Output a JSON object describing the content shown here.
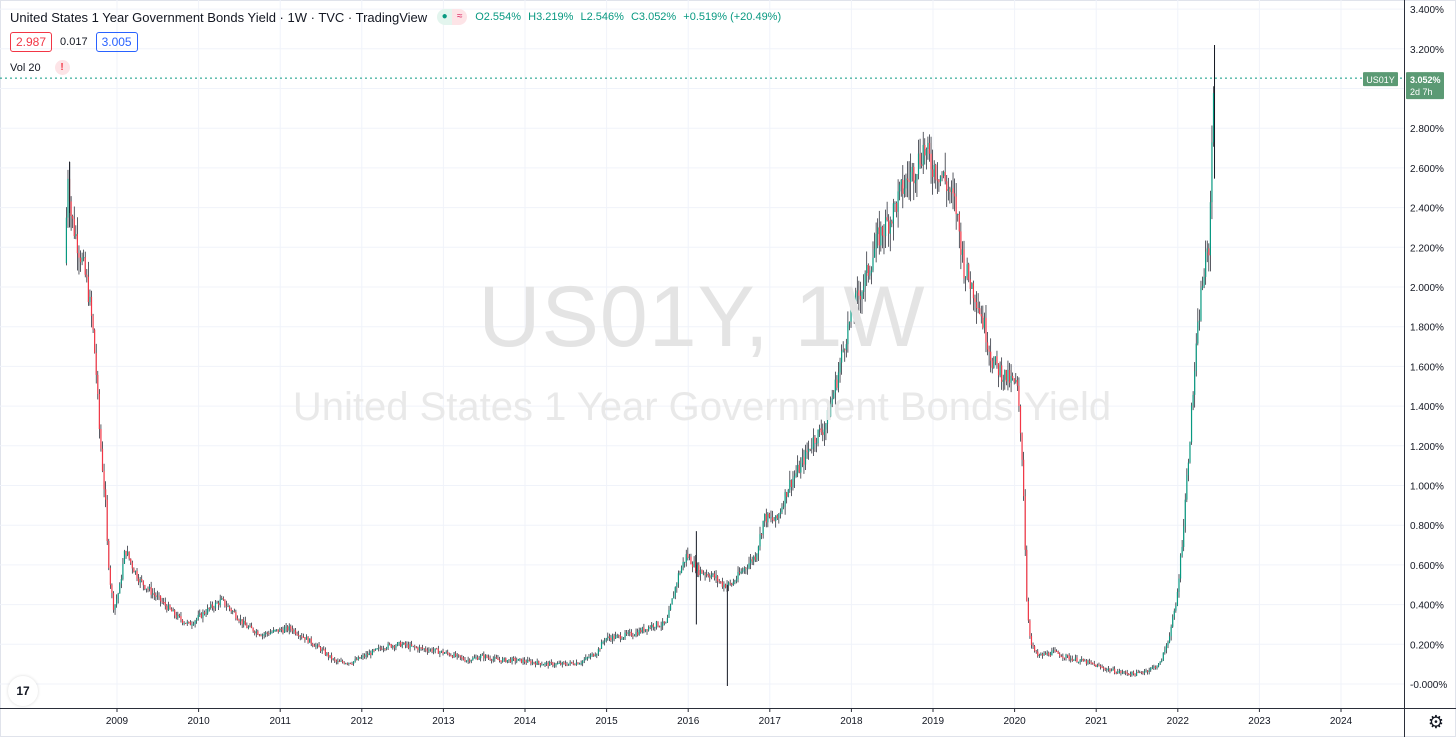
{
  "legend": {
    "title": "United States 1 Year Government Bonds Yield · 1W · TVC · TradingView",
    "open": "O2.554%",
    "high": "H3.219%",
    "low": "L2.546%",
    "close": "C3.052%",
    "change": "+0.519% (+20.49%)",
    "pill_left": "●",
    "pill_right": "≈"
  },
  "prices": {
    "bid": "2.987",
    "spread": "0.017",
    "ask": "3.005"
  },
  "volume": {
    "label": "Vol 20",
    "warn": "!"
  },
  "watermark": {
    "ticker": "US01Y, 1W",
    "description": "United States 1 Year Government Bonds Yield"
  },
  "last_price": {
    "symbol": "US01Y",
    "value": "3.052%",
    "countdown": "2d 7h",
    "value_num": 3.052
  },
  "colors": {
    "up": "#089981",
    "down": "#f23645",
    "grid": "#f0f3fa",
    "axis_text": "#131722",
    "label_bg": "#5b9a74"
  },
  "icons": {
    "logo": "tradingview-logo-icon",
    "settings": "gear-icon"
  },
  "logo_text": "17",
  "gear_text": "⚙",
  "chart_data": {
    "type": "candlestick",
    "interval": "1W",
    "y_unit": "%",
    "ylim": [
      -0.06,
      3.42
    ],
    "y_ticks": [
      "3.400%",
      "3.200%",
      "3.000%",
      "2.800%",
      "2.600%",
      "2.400%",
      "2.200%",
      "2.000%",
      "1.800%",
      "1.600%",
      "1.400%",
      "1.200%",
      "1.000%",
      "0.800%",
      "0.600%",
      "0.400%",
      "0.200%",
      "-0.000%"
    ],
    "y_tick_values": [
      3.4,
      3.2,
      3.0,
      2.8,
      2.6,
      2.4,
      2.2,
      2.0,
      1.8,
      1.6,
      1.4,
      1.2,
      1.0,
      0.8,
      0.6,
      0.4,
      0.2,
      0.0
    ],
    "xlim": [
      2008.3,
      2025.0
    ],
    "x_ticks": [
      "2009",
      "2010",
      "2011",
      "2012",
      "2013",
      "2014",
      "2015",
      "2016",
      "2017",
      "2018",
      "2019",
      "2020",
      "2021",
      "2022",
      "2023",
      "2024"
    ],
    "x_tick_values": [
      2009,
      2010,
      2011,
      2012,
      2013,
      2014,
      2015,
      2016,
      2017,
      2018,
      2019,
      2020,
      2021,
      2022,
      2023,
      2024
    ],
    "grid": true,
    "price_path": [
      [
        2008.38,
        2.12
      ],
      [
        2008.42,
        2.6
      ],
      [
        2008.46,
        2.35
      ],
      [
        2008.52,
        2.25
      ],
      [
        2008.58,
        2.15
      ],
      [
        2008.66,
        2.0
      ],
      [
        2008.72,
        1.8
      ],
      [
        2008.76,
        1.6
      ],
      [
        2008.8,
        1.3
      ],
      [
        2008.84,
        1.1
      ],
      [
        2008.88,
        0.9
      ],
      [
        2008.9,
        0.7
      ],
      [
        2008.94,
        0.5
      ],
      [
        2008.98,
        0.38
      ],
      [
        2009.05,
        0.48
      ],
      [
        2009.12,
        0.68
      ],
      [
        2009.2,
        0.6
      ],
      [
        2009.3,
        0.52
      ],
      [
        2009.45,
        0.46
      ],
      [
        2009.6,
        0.4
      ],
      [
        2009.75,
        0.34
      ],
      [
        2009.9,
        0.3
      ],
      [
        2010.0,
        0.33
      ],
      [
        2010.15,
        0.38
      ],
      [
        2010.3,
        0.42
      ],
      [
        2010.45,
        0.36
      ],
      [
        2010.6,
        0.29
      ],
      [
        2010.8,
        0.25
      ],
      [
        2011.0,
        0.27
      ],
      [
        2011.15,
        0.28
      ],
      [
        2011.3,
        0.24
      ],
      [
        2011.5,
        0.18
      ],
      [
        2011.7,
        0.11
      ],
      [
        2011.9,
        0.11
      ],
      [
        2012.1,
        0.15
      ],
      [
        2012.3,
        0.19
      ],
      [
        2012.5,
        0.2
      ],
      [
        2012.7,
        0.18
      ],
      [
        2012.9,
        0.17
      ],
      [
        2013.1,
        0.15
      ],
      [
        2013.3,
        0.12
      ],
      [
        2013.5,
        0.14
      ],
      [
        2013.7,
        0.12
      ],
      [
        2013.9,
        0.12
      ],
      [
        2014.1,
        0.11
      ],
      [
        2014.3,
        0.1
      ],
      [
        2014.5,
        0.1
      ],
      [
        2014.7,
        0.11
      ],
      [
        2014.9,
        0.16
      ],
      [
        2015.0,
        0.23
      ],
      [
        2015.2,
        0.24
      ],
      [
        2015.4,
        0.26
      ],
      [
        2015.6,
        0.3
      ],
      [
        2015.75,
        0.3
      ],
      [
        2015.9,
        0.55
      ],
      [
        2016.0,
        0.65
      ],
      [
        2016.15,
        0.57
      ],
      [
        2016.3,
        0.55
      ],
      [
        2016.45,
        0.5
      ],
      [
        2016.55,
        0.5
      ],
      [
        2016.7,
        0.58
      ],
      [
        2016.85,
        0.65
      ],
      [
        2016.95,
        0.84
      ],
      [
        2017.1,
        0.82
      ],
      [
        2017.25,
        1.0
      ],
      [
        2017.4,
        1.1
      ],
      [
        2017.55,
        1.23
      ],
      [
        2017.7,
        1.3
      ],
      [
        2017.85,
        1.55
      ],
      [
        2017.95,
        1.75
      ],
      [
        2018.05,
        1.9
      ],
      [
        2018.2,
        2.05
      ],
      [
        2018.35,
        2.25
      ],
      [
        2018.5,
        2.35
      ],
      [
        2018.65,
        2.5
      ],
      [
        2018.8,
        2.6
      ],
      [
        2018.9,
        2.7
      ],
      [
        2019.0,
        2.62
      ],
      [
        2019.15,
        2.55
      ],
      [
        2019.3,
        2.4
      ],
      [
        2019.4,
        2.1
      ],
      [
        2019.55,
        1.95
      ],
      [
        2019.65,
        1.8
      ],
      [
        2019.75,
        1.62
      ],
      [
        2019.9,
        1.55
      ],
      [
        2020.05,
        1.5
      ],
      [
        2020.12,
        1.1
      ],
      [
        2020.17,
        0.4
      ],
      [
        2020.22,
        0.2
      ],
      [
        2020.3,
        0.14
      ],
      [
        2020.5,
        0.16
      ],
      [
        2020.7,
        0.13
      ],
      [
        2020.9,
        0.11
      ],
      [
        2021.1,
        0.08
      ],
      [
        2021.3,
        0.06
      ],
      [
        2021.5,
        0.05
      ],
      [
        2021.65,
        0.07
      ],
      [
        2021.8,
        0.1
      ],
      [
        2021.9,
        0.22
      ],
      [
        2022.0,
        0.4
      ],
      [
        2022.08,
        0.75
      ],
      [
        2022.15,
        1.15
      ],
      [
        2022.22,
        1.55
      ],
      [
        2022.3,
        1.95
      ],
      [
        2022.35,
        2.1
      ],
      [
        2022.4,
        2.2
      ],
      [
        2022.43,
        2.55
      ],
      [
        2022.45,
        3.052
      ]
    ],
    "spikes": [
      {
        "x": 2016.48,
        "low": -0.01,
        "high": 0.5
      },
      {
        "x": 2016.1,
        "low": 0.3,
        "high": 0.77
      },
      {
        "x": 2022.45,
        "low": 2.546,
        "high": 3.219
      },
      {
        "x": 2008.42,
        "low": 2.3,
        "high": 2.63
      }
    ]
  }
}
